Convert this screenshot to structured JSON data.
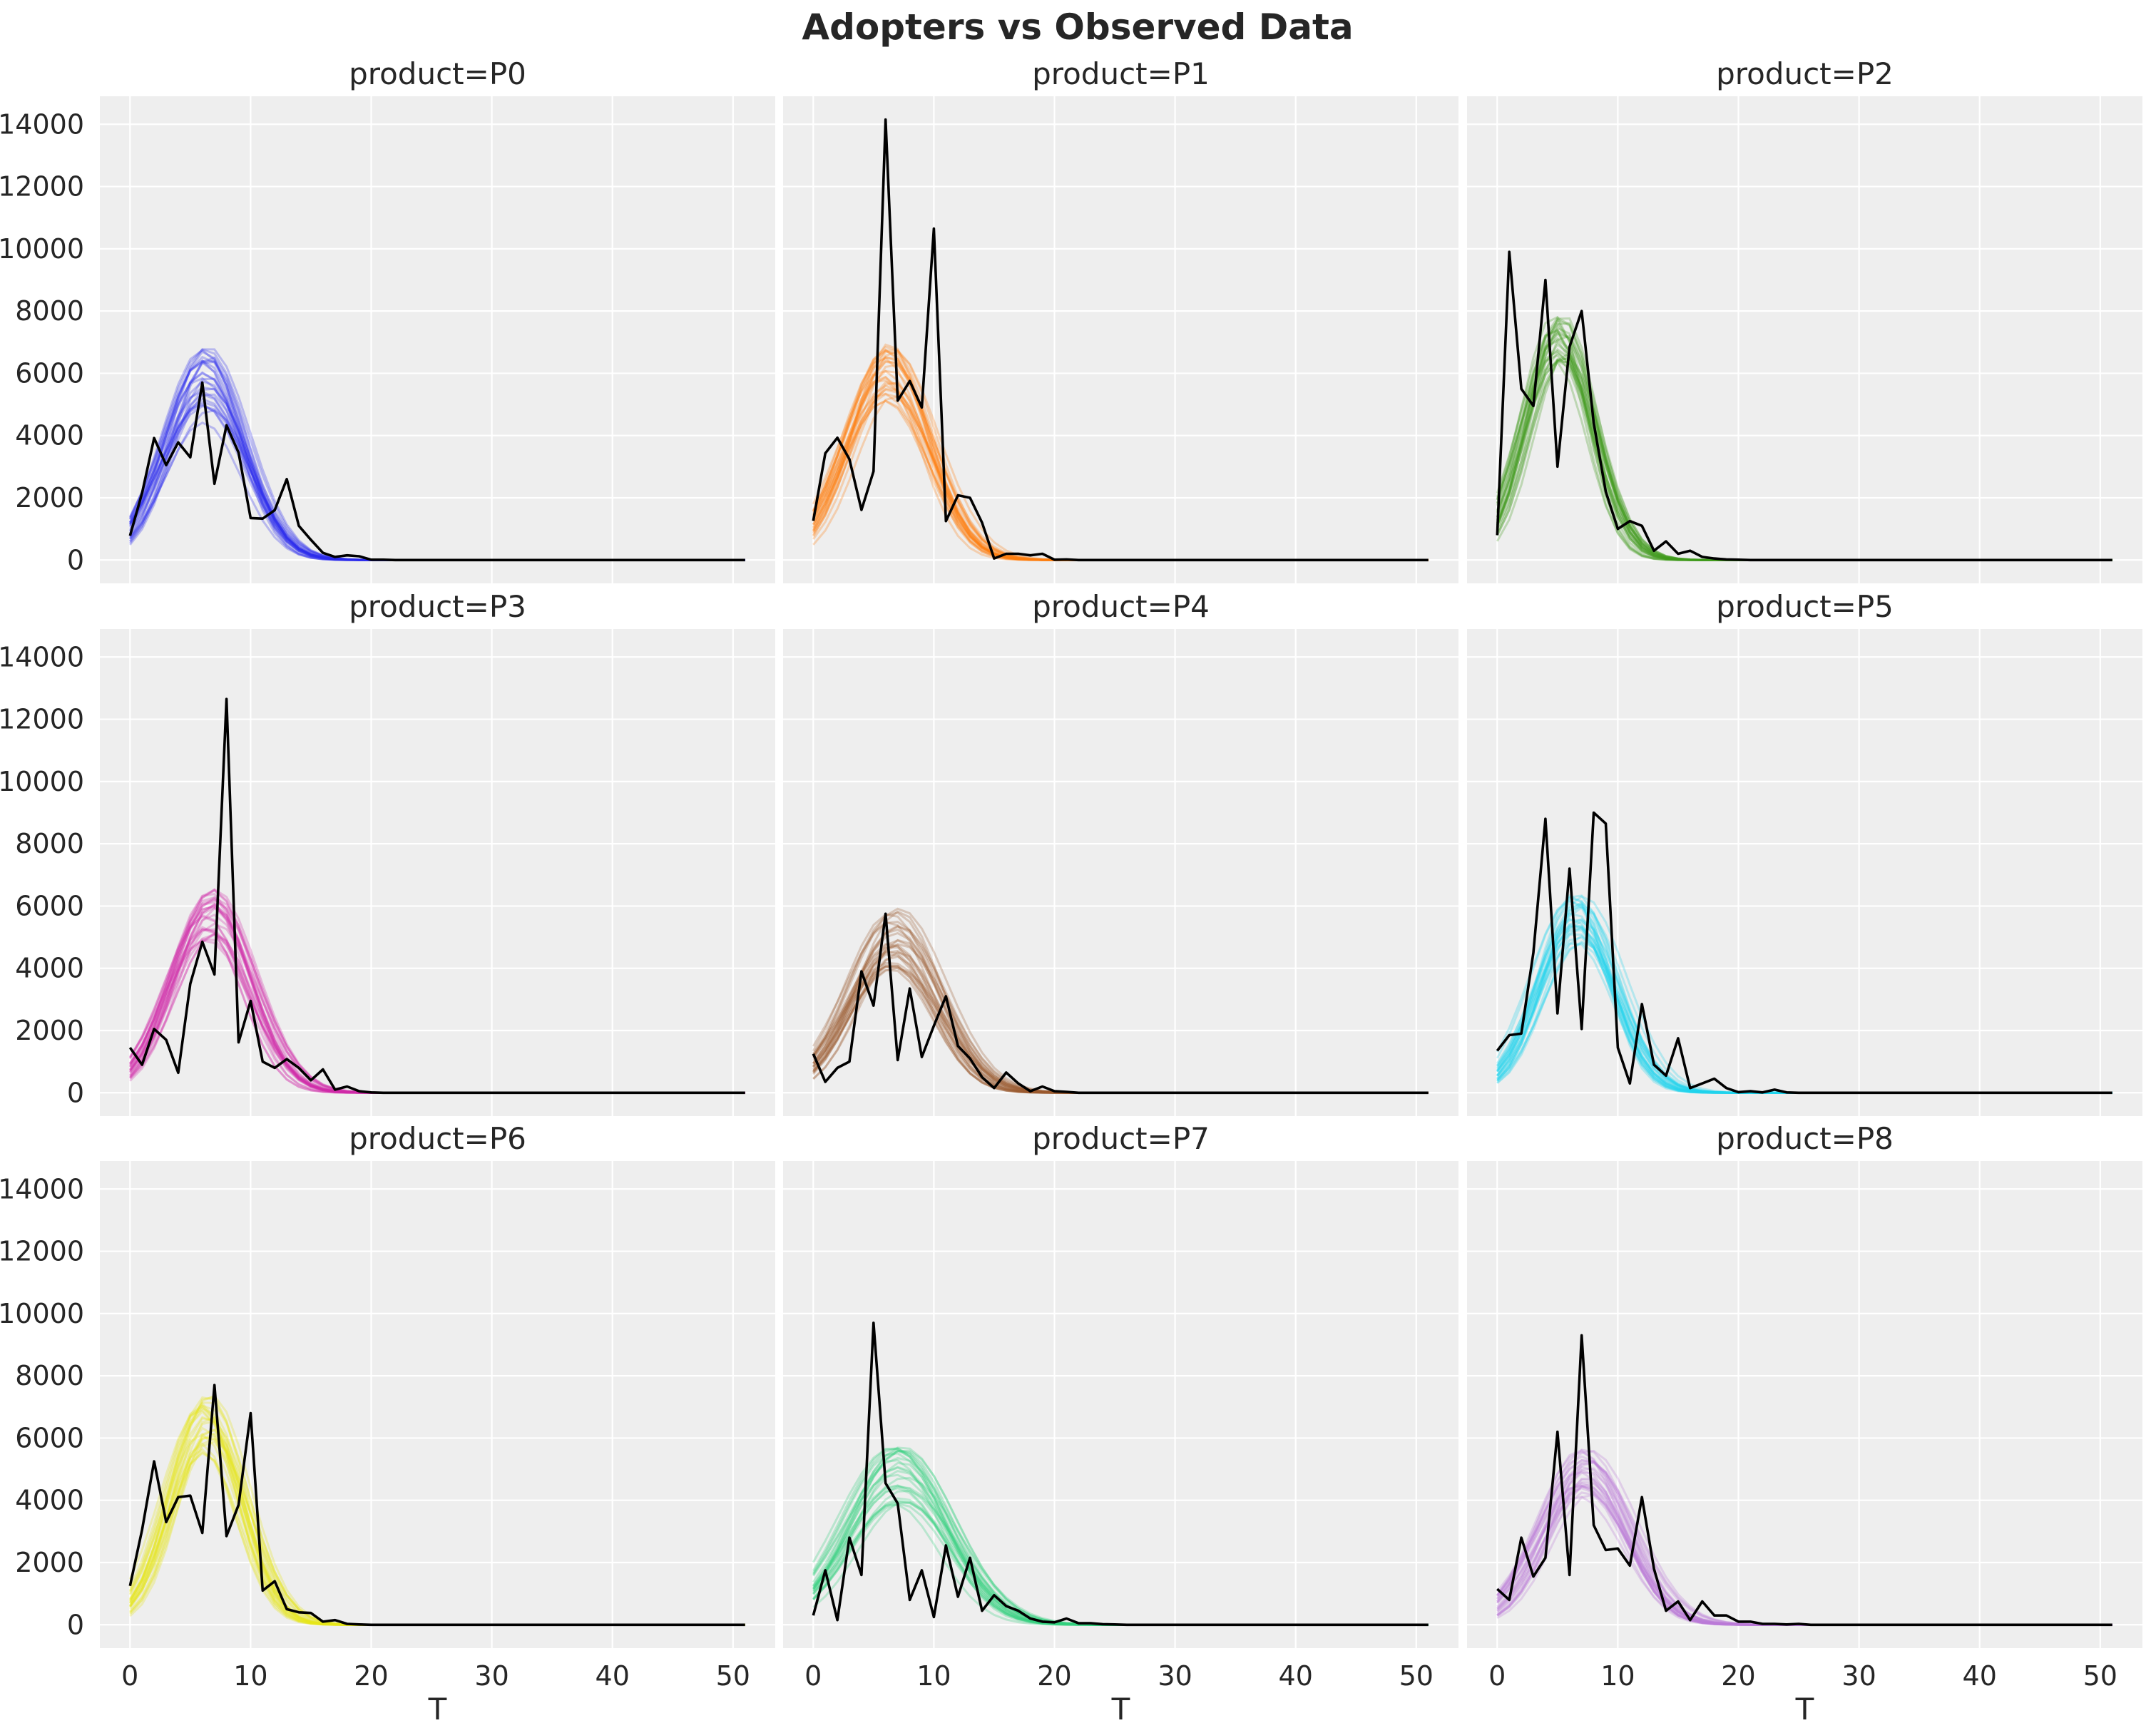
{
  "chart_data": {
    "type": "line",
    "title": "Adopters vs Observed Data",
    "xlabel": "T",
    "ylabel": "",
    "xlim": [
      -2.5,
      53.5
    ],
    "ylim": [
      -750,
      14900
    ],
    "x_ticks": [
      0,
      10,
      20,
      30,
      40,
      50
    ],
    "y_ticks": [
      0,
      2000,
      4000,
      6000,
      8000,
      10000,
      12000,
      14000
    ],
    "grid": true,
    "layout": "3x3",
    "facets": [
      {
        "title": "product=P0",
        "color": "#2a2aee",
        "band": {
          "mu": 6.3,
          "sigma": 3.3,
          "amp_low": 4400,
          "amp_high": 6850
        },
        "observed": [
          780,
          2150,
          3920,
          3050,
          3780,
          3300,
          5700,
          2450,
          4330,
          3450,
          1350,
          1330,
          1600,
          2600,
          1100,
          650,
          230,
          100,
          150,
          120,
          10,
          10,
          0,
          0,
          0,
          0,
          0,
          0,
          0,
          0,
          0,
          0,
          0,
          0,
          0,
          0,
          0,
          0,
          0,
          0,
          0,
          0,
          0,
          0,
          0,
          0,
          0,
          0,
          0,
          0,
          0,
          0
        ]
      },
      {
        "title": "product=P1",
        "color": "#ff7f0e",
        "band": {
          "mu": 6.2,
          "sigma": 3.4,
          "amp_low": 5100,
          "amp_high": 7150
        },
        "observed": [
          1260,
          3430,
          3930,
          3240,
          1610,
          2850,
          14150,
          5120,
          5750,
          4900,
          10650,
          1250,
          2080,
          2000,
          1200,
          50,
          200,
          200,
          150,
          200,
          10,
          20,
          0,
          0,
          0,
          0,
          0,
          0,
          0,
          0,
          0,
          0,
          0,
          0,
          0,
          0,
          0,
          0,
          0,
          0,
          0,
          0,
          0,
          0,
          0,
          0,
          0,
          0,
          0,
          0,
          0,
          0
        ]
      },
      {
        "title": "product=P2",
        "color": "#3f9b1e",
        "band": {
          "mu": 5.2,
          "sigma": 2.8,
          "amp_low": 6000,
          "amp_high": 7900
        },
        "observed": [
          800,
          9900,
          5500,
          4950,
          9000,
          3000,
          6850,
          8000,
          4400,
          2200,
          1000,
          1250,
          1100,
          300,
          600,
          200,
          300,
          100,
          50,
          20,
          10,
          0,
          0,
          0,
          0,
          0,
          0,
          0,
          0,
          0,
          0,
          0,
          0,
          0,
          0,
          0,
          0,
          0,
          0,
          0,
          0,
          0,
          0,
          0,
          0,
          0,
          0,
          0,
          0,
          0,
          0,
          0
        ]
      },
      {
        "title": "product=P3",
        "color": "#d02aaa",
        "band": {
          "mu": 6.7,
          "sigma": 3.3,
          "amp_low": 4900,
          "amp_high": 6550
        },
        "observed": [
          1450,
          900,
          2050,
          1700,
          640,
          3500,
          4850,
          3800,
          12650,
          1620,
          2950,
          1000,
          800,
          1080,
          800,
          400,
          750,
          100,
          200,
          50,
          10,
          0,
          0,
          0,
          0,
          0,
          0,
          0,
          0,
          0,
          0,
          0,
          0,
          0,
          0,
          0,
          0,
          0,
          0,
          0,
          0,
          0,
          0,
          0,
          0,
          0,
          0,
          0,
          0,
          0,
          0,
          0
        ]
      },
      {
        "title": "product=P4",
        "color": "#9a5a30",
        "band": {
          "mu": 6.8,
          "sigma": 3.7,
          "amp_low": 3950,
          "amp_high": 5950
        },
        "observed": [
          1250,
          350,
          800,
          1000,
          3900,
          2800,
          5750,
          1050,
          3350,
          1150,
          2150,
          3100,
          1500,
          1100,
          500,
          150,
          650,
          300,
          50,
          200,
          50,
          30,
          0,
          0,
          0,
          0,
          0,
          0,
          0,
          0,
          0,
          0,
          0,
          0,
          0,
          0,
          0,
          0,
          0,
          0,
          0,
          0,
          0,
          0,
          0,
          0,
          0,
          0,
          0,
          0,
          0,
          0
        ]
      },
      {
        "title": "product=P5",
        "color": "#1fd3ee",
        "band": {
          "mu": 6.6,
          "sigma": 3.2,
          "amp_low": 4800,
          "amp_high": 6450
        },
        "observed": [
          1350,
          1850,
          1900,
          4500,
          8800,
          2550,
          7200,
          2050,
          9000,
          8650,
          1450,
          300,
          2850,
          900,
          550,
          1750,
          150,
          300,
          450,
          150,
          20,
          50,
          10,
          100,
          10,
          0,
          0,
          0,
          0,
          0,
          0,
          0,
          0,
          0,
          0,
          0,
          0,
          0,
          0,
          0,
          0,
          0,
          0,
          0,
          0,
          0,
          0,
          0,
          0,
          0,
          0,
          0
        ]
      },
      {
        "title": "product=P6",
        "color": "#e6e61a",
        "band": {
          "mu": 6.3,
          "sigma": 3.0,
          "amp_low": 5500,
          "amp_high": 7400
        },
        "observed": [
          1250,
          3050,
          5250,
          3300,
          4100,
          4150,
          2950,
          7700,
          2850,
          3850,
          6800,
          1100,
          1400,
          500,
          400,
          380,
          100,
          150,
          30,
          10,
          0,
          0,
          0,
          0,
          0,
          0,
          0,
          0,
          0,
          0,
          0,
          0,
          0,
          0,
          0,
          0,
          0,
          0,
          0,
          0,
          0,
          0,
          0,
          0,
          0,
          0,
          0,
          0,
          0,
          0,
          0,
          0
        ]
      },
      {
        "title": "product=P7",
        "color": "#34d27d",
        "band": {
          "mu": 7.1,
          "sigma": 4.1,
          "amp_low": 3700,
          "amp_high": 5850
        },
        "observed": [
          300,
          1750,
          150,
          2800,
          1600,
          9700,
          4550,
          3900,
          800,
          1750,
          250,
          2550,
          900,
          2150,
          450,
          950,
          600,
          450,
          200,
          100,
          80,
          200,
          50,
          50,
          20,
          10,
          0,
          0,
          0,
          0,
          0,
          0,
          0,
          0,
          0,
          0,
          0,
          0,
          0,
          0,
          0,
          0,
          0,
          0,
          0,
          0,
          0,
          0,
          0,
          0,
          0,
          0
        ]
      },
      {
        "title": "product=P8",
        "color": "#b97ad6",
        "band": {
          "mu": 7.3,
          "sigma": 3.6,
          "amp_low": 4100,
          "amp_high": 5750
        },
        "observed": [
          1150,
          800,
          2800,
          1550,
          2150,
          6200,
          1600,
          9300,
          3200,
          2400,
          2450,
          1900,
          4100,
          1800,
          450,
          750,
          150,
          750,
          300,
          300,
          100,
          100,
          30,
          30,
          10,
          30,
          0,
          0,
          0,
          0,
          0,
          0,
          0,
          0,
          0,
          0,
          0,
          0,
          0,
          0,
          0,
          0,
          0,
          0,
          0,
          0,
          0,
          0,
          0,
          0,
          0,
          0
        ]
      }
    ]
  }
}
